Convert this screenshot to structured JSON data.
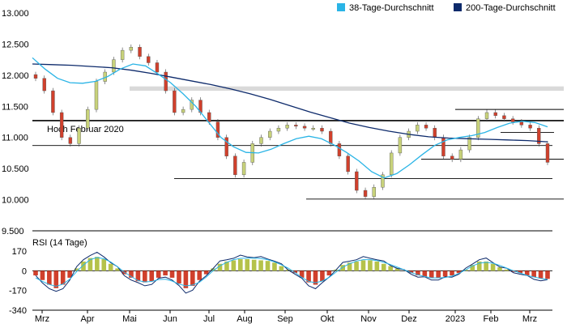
{
  "chart_data": [
    {
      "type": "candlestick",
      "title": "",
      "ylim": [
        9500,
        13000
      ],
      "yticks": [
        "13.000",
        "12.500",
        "12.000",
        "11.500",
        "11.000",
        "10.500",
        "10.000",
        "9.500"
      ],
      "ytick_values": [
        13000,
        12500,
        12000,
        11500,
        11000,
        10500,
        10000,
        9500
      ],
      "x_months": [
        "Mrz",
        "Apr",
        "Mai",
        "Jun",
        "Jul",
        "Aug",
        "Sep",
        "Okt",
        "Nov",
        "Dez",
        "2023",
        "Feb",
        "Mrz"
      ],
      "legend": [
        {
          "name": "38-Tage-Durchschnitt",
          "color": "#2ab4e6"
        },
        {
          "name": "200-Tage-Durchschnitt",
          "color": "#0d2a6b"
        }
      ],
      "annotation": "Hoch Februar 2020",
      "key_levels": [
        11270,
        11450,
        11080,
        10870,
        10650,
        10340,
        10010
      ],
      "resistance_zone": [
        11750,
        11820
      ],
      "closes": [
        11950,
        11750,
        11400,
        11000,
        10900,
        11150,
        11450,
        11900,
        12050,
        12250,
        12400,
        12450,
        12300,
        12200,
        12050,
        11750,
        11400,
        11450,
        11600,
        11400,
        11250,
        11000,
        10700,
        10400,
        10600,
        10900,
        11000,
        11100,
        11150,
        11200,
        11180,
        11150,
        11150,
        11100,
        10900,
        10700,
        10450,
        10150,
        10050,
        10200,
        10400,
        10750,
        11000,
        11100,
        11200,
        11150,
        11000,
        10700,
        10650,
        10800,
        11000,
        11300,
        11400,
        11350,
        11300,
        11250,
        11200,
        11150,
        10900,
        10600
      ],
      "ma38": [
        12280,
        12100,
        11950,
        11880,
        11870,
        11900,
        11980,
        12100,
        12180,
        12150,
        12020,
        11880,
        11700,
        11500,
        11250,
        11000,
        10850,
        10760,
        10750,
        10810,
        10900,
        10980,
        11020,
        10980,
        10880,
        10760,
        10620,
        10450,
        10350,
        10420,
        10560,
        10720,
        10870,
        10960,
        11000,
        11030,
        11080,
        11160,
        11230,
        11260,
        11240,
        11170
      ],
      "ma200": [
        12180,
        12170,
        12160,
        12140,
        12120,
        12080,
        12030,
        11970,
        11910,
        11850,
        11780,
        11700,
        11610,
        11510,
        11410,
        11320,
        11230,
        11160,
        11100,
        11050,
        11010,
        10990,
        10980,
        10970,
        10960,
        10950,
        10930
      ],
      "rsi": {
        "title": "RSI (14 Tage)",
        "ylim": [
          -340,
          170
        ],
        "yticks": [
          "170",
          "0",
          "-170",
          "-340"
        ],
        "ytick_values": [
          170,
          0,
          -170,
          -340
        ],
        "histogram": [
          -40,
          -80,
          -120,
          -150,
          -120,
          -60,
          20,
          80,
          110,
          120,
          100,
          60,
          20,
          -30,
          -60,
          -90,
          -100,
          -90,
          -60,
          -40,
          -60,
          -110,
          -150,
          -130,
          -80,
          -30,
          20,
          60,
          80,
          90,
          100,
          100,
          95,
          90,
          85,
          70,
          40,
          10,
          -20,
          -60,
          -100,
          -120,
          -90,
          -40,
          10,
          50,
          70,
          80,
          90,
          90,
          80,
          60,
          40,
          20,
          0,
          -20,
          -40,
          -50,
          -60,
          -60,
          -50,
          -40,
          -20,
          10,
          50,
          80,
          80,
          60,
          30,
          10,
          -10,
          -20,
          -40,
          -55,
          -65,
          -70
        ]
      }
    }
  ]
}
